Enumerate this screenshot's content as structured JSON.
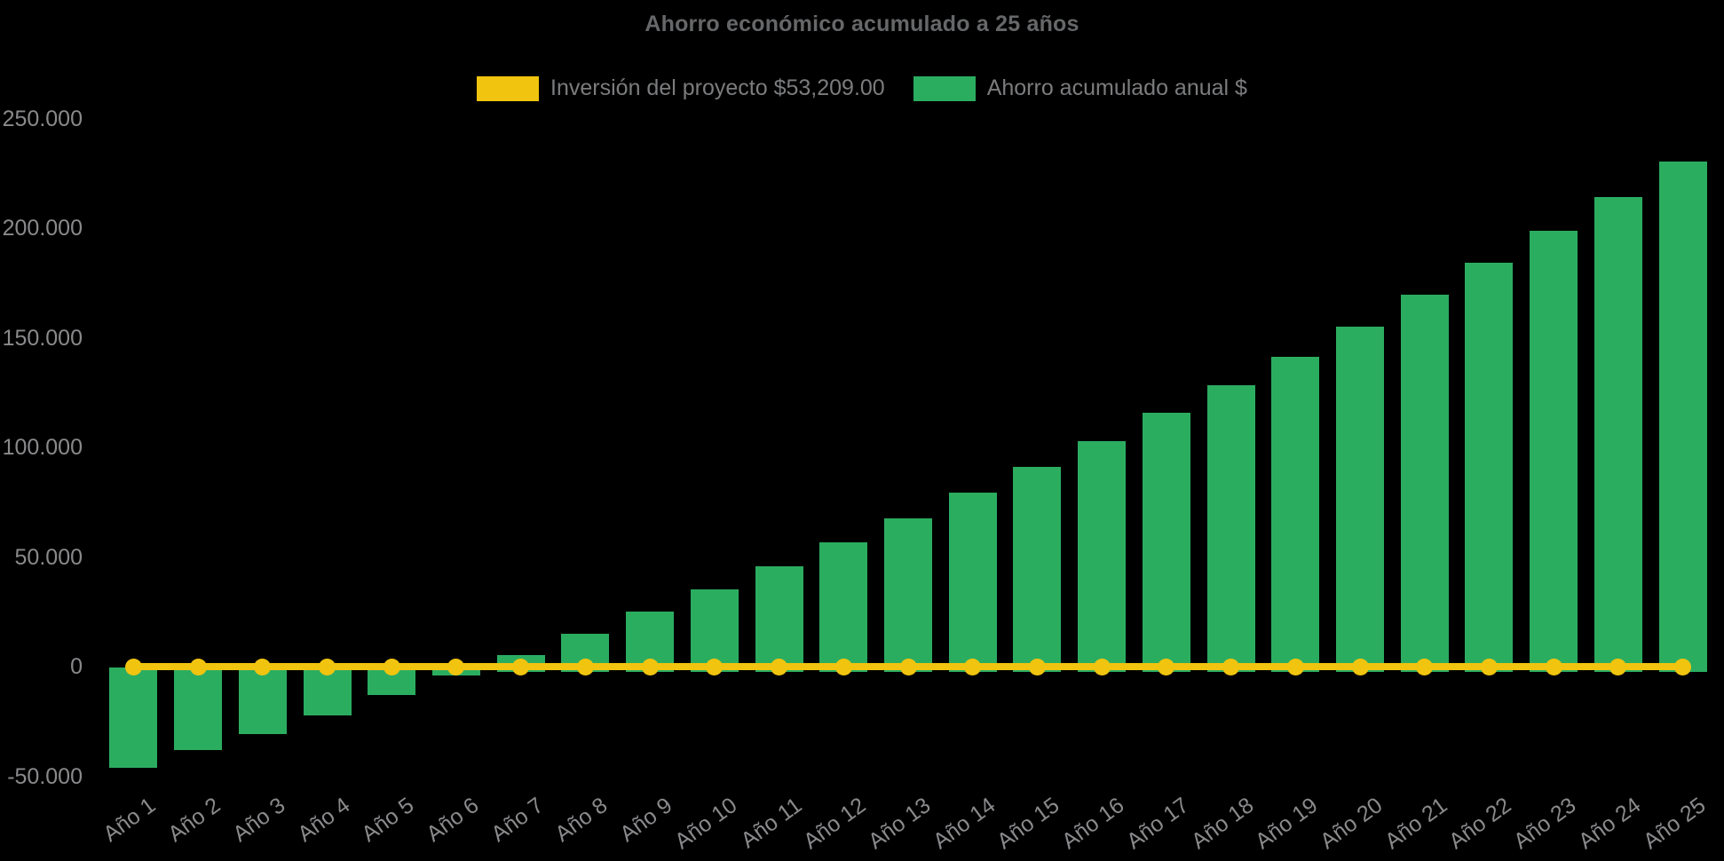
{
  "title": "Ahorro económico acumulado a 25 años",
  "legend": {
    "items": [
      {
        "label": "Inversión del proyecto $53,209.00",
        "color": "#F1C40F",
        "series": "line"
      },
      {
        "label": "Ahorro acumulado anual $",
        "color": "#2BAD60",
        "series": "bar"
      }
    ]
  },
  "y_axis": {
    "tick_labels": [
      "250.000",
      "200.000",
      "150.000",
      "100.000",
      "50.000",
      "0",
      "-50.000"
    ],
    "tick_values": [
      250000,
      200000,
      150000,
      100000,
      50000,
      0,
      -50000
    ]
  },
  "chart_data": {
    "type": "bar",
    "title": "Ahorro económico acumulado a 25 años",
    "categories": [
      "Año 1",
      "Año 2",
      "Año 3",
      "Año 4",
      "Año 5",
      "Año 6",
      "Año 7",
      "Año 8",
      "Año 9",
      "Año 10",
      "Año 11",
      "Año 12",
      "Año 13",
      "Año 14",
      "Año 15",
      "Año 16",
      "Año 17",
      "Año 18",
      "Año 19",
      "Año 20",
      "Año 21",
      "Año 22",
      "Año 23",
      "Año 24",
      "Año 25"
    ],
    "series": [
      {
        "name": "Ahorro acumulado anual $",
        "type": "bar",
        "color": "#2BAD60",
        "values": [
          -46000,
          -38100,
          -30800,
          -22300,
          -13000,
          -4000,
          5300,
          15000,
          25100,
          35200,
          45800,
          56700,
          67600,
          79400,
          91100,
          102800,
          115800,
          128400,
          141300,
          155100,
          169600,
          184200,
          198800,
          214200,
          230400
        ]
      },
      {
        "name": "Inversión del proyecto $53,209.00",
        "type": "line",
        "color": "#F1C40F",
        "marker": "circle",
        "values": [
          0,
          0,
          0,
          0,
          0,
          0,
          0,
          0,
          0,
          0,
          0,
          0,
          0,
          0,
          0,
          0,
          0,
          0,
          0,
          0,
          0,
          0,
          0,
          0,
          0
        ]
      }
    ],
    "investment_label_amount": "$53,209.00",
    "xlabel": "",
    "ylabel": "",
    "ylim": [
      -50000,
      250000
    ],
    "y_tick_step": 50000,
    "grid": false,
    "legend_position": "top",
    "x_tick_rotation_deg": -36,
    "number_format": "es thousands dot separator"
  },
  "colors": {
    "background": "#000000",
    "bar_green": "#2BAD60",
    "line_yellow": "#F1C40F",
    "title_text": "#666769",
    "legend_text": "#7b7c7e",
    "tick_text": "#8a8a8d"
  }
}
